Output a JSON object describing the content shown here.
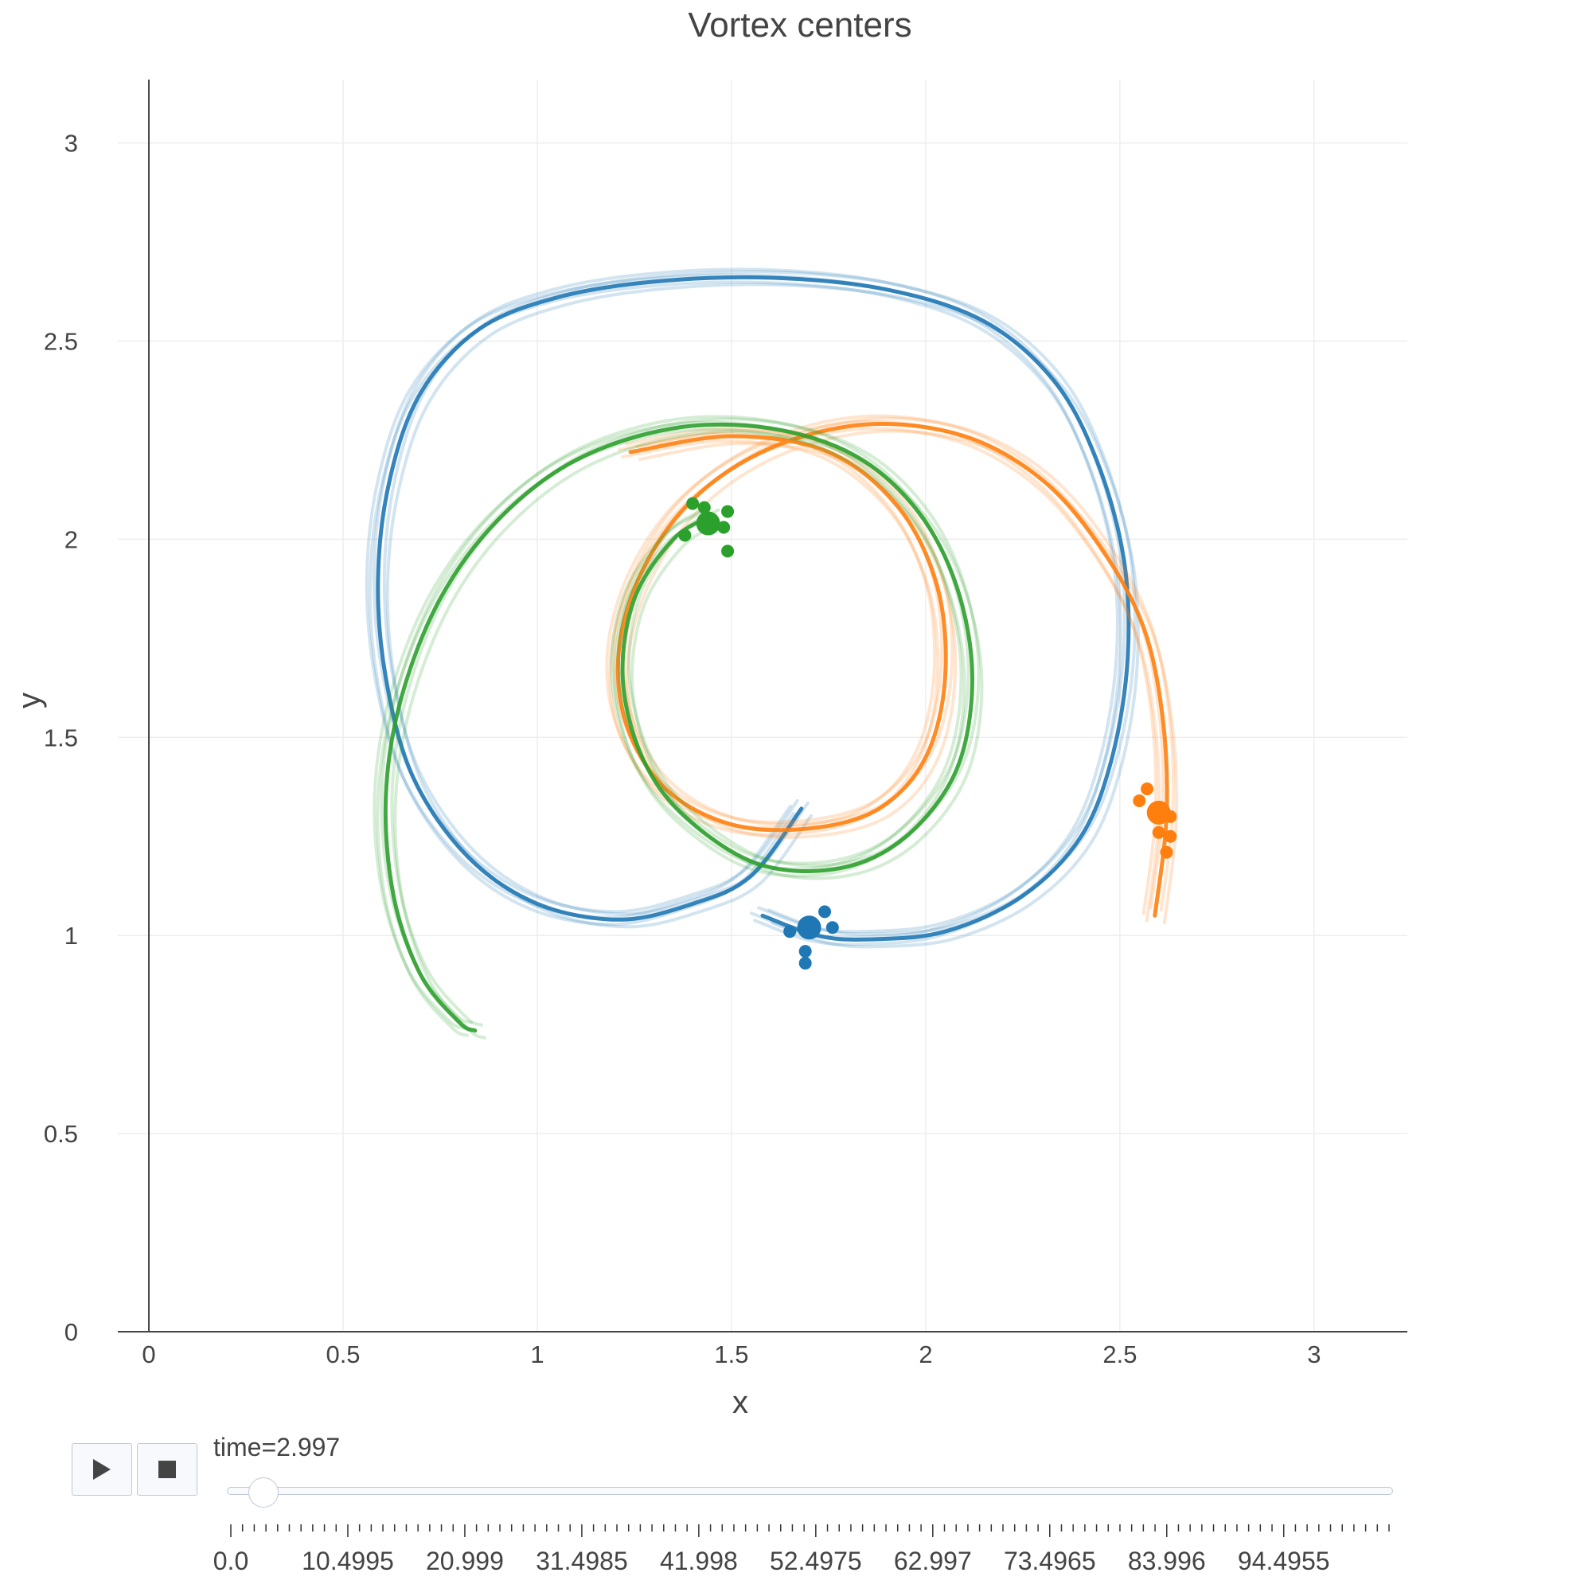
{
  "chart_data": {
    "type": "scatter",
    "title": "Vortex centers",
    "xlabel": "x",
    "ylabel": "y",
    "xlim": [
      -0.08,
      3.24
    ],
    "ylim": [
      0,
      3.16
    ],
    "xticks": [
      "0",
      "0.5",
      "1",
      "1.5",
      "2",
      "2.5",
      "3"
    ],
    "yticks": [
      "0",
      "0.5",
      "1",
      "1.5",
      "2",
      "2.5",
      "3"
    ],
    "grid": true,
    "legend": "none",
    "series": [
      {
        "color": "#1f77b4",
        "trail": [
          [
            1.68,
            1.32
          ],
          [
            1.55,
            1.15
          ],
          [
            1.4,
            1.08
          ],
          [
            1.21,
            1.04
          ],
          [
            1.0,
            1.08
          ],
          [
            0.82,
            1.2
          ],
          [
            0.68,
            1.4
          ],
          [
            0.61,
            1.65
          ],
          [
            0.59,
            1.9
          ],
          [
            0.62,
            2.15
          ],
          [
            0.7,
            2.37
          ],
          [
            0.85,
            2.53
          ],
          [
            1.05,
            2.61
          ],
          [
            1.3,
            2.65
          ],
          [
            1.6,
            2.66
          ],
          [
            1.9,
            2.63
          ],
          [
            2.15,
            2.55
          ],
          [
            2.33,
            2.4
          ],
          [
            2.44,
            2.2
          ],
          [
            2.51,
            1.95
          ],
          [
            2.52,
            1.7
          ],
          [
            2.48,
            1.45
          ],
          [
            2.4,
            1.25
          ],
          [
            2.25,
            1.1
          ],
          [
            2.05,
            1.01
          ],
          [
            1.85,
            0.99
          ],
          [
            1.72,
            1.0
          ],
          [
            1.58,
            1.05
          ]
        ],
        "current": [
          1.7,
          1.02
        ],
        "points": [
          [
            1.65,
            1.01
          ],
          [
            1.74,
            1.06
          ],
          [
            1.76,
            1.02
          ],
          [
            1.69,
            0.96
          ],
          [
            1.69,
            0.93
          ]
        ]
      },
      {
        "color": "#ff7f0e",
        "trail": [
          [
            1.24,
            2.22
          ],
          [
            1.5,
            2.26
          ],
          [
            1.75,
            2.22
          ],
          [
            1.93,
            2.08
          ],
          [
            2.03,
            1.88
          ],
          [
            2.05,
            1.65
          ],
          [
            2.0,
            1.45
          ],
          [
            1.88,
            1.32
          ],
          [
            1.7,
            1.27
          ],
          [
            1.5,
            1.28
          ],
          [
            1.33,
            1.37
          ],
          [
            1.23,
            1.53
          ],
          [
            1.21,
            1.72
          ],
          [
            1.27,
            1.92
          ],
          [
            1.4,
            2.1
          ],
          [
            1.6,
            2.23
          ],
          [
            1.85,
            2.29
          ],
          [
            2.1,
            2.26
          ],
          [
            2.3,
            2.15
          ],
          [
            2.45,
            1.98
          ],
          [
            2.56,
            1.78
          ],
          [
            2.61,
            1.55
          ],
          [
            2.62,
            1.3
          ],
          [
            2.59,
            1.05
          ]
        ],
        "current": [
          2.6,
          1.31
        ],
        "points": [
          [
            2.55,
            1.34
          ],
          [
            2.57,
            1.37
          ],
          [
            2.63,
            1.3
          ],
          [
            2.6,
            1.26
          ],
          [
            2.63,
            1.25
          ],
          [
            2.62,
            1.21
          ]
        ]
      },
      {
        "color": "#2ca02c",
        "trail": [
          [
            1.45,
            2.06
          ],
          [
            1.35,
            2.0
          ],
          [
            1.25,
            1.85
          ],
          [
            1.22,
            1.65
          ],
          [
            1.27,
            1.45
          ],
          [
            1.38,
            1.3
          ],
          [
            1.57,
            1.18
          ],
          [
            1.78,
            1.17
          ],
          [
            1.95,
            1.25
          ],
          [
            2.08,
            1.42
          ],
          [
            2.12,
            1.65
          ],
          [
            2.08,
            1.88
          ],
          [
            1.98,
            2.07
          ],
          [
            1.82,
            2.21
          ],
          [
            1.6,
            2.28
          ],
          [
            1.35,
            2.28
          ],
          [
            1.1,
            2.2
          ],
          [
            0.9,
            2.05
          ],
          [
            0.75,
            1.85
          ],
          [
            0.65,
            1.6
          ],
          [
            0.61,
            1.35
          ],
          [
            0.63,
            1.1
          ],
          [
            0.7,
            0.9
          ],
          [
            0.8,
            0.78
          ],
          [
            0.84,
            0.76
          ]
        ],
        "current": [
          1.44,
          2.04
        ],
        "points": [
          [
            1.38,
            2.01
          ],
          [
            1.4,
            2.09
          ],
          [
            1.43,
            2.08
          ],
          [
            1.49,
            2.07
          ],
          [
            1.48,
            2.03
          ],
          [
            1.49,
            1.97
          ]
        ]
      }
    ]
  },
  "controls": {
    "play_icon": "play-icon",
    "stop_icon": "stop-icon",
    "slider_prefix": "time=",
    "slider_value": "2.997",
    "slider_fraction": 0.0285,
    "slider_ticks": [
      "0.0",
      "10.4995",
      "20.999",
      "31.4985",
      "41.998",
      "52.4975",
      "62.997",
      "73.4965",
      "83.996",
      "94.4955"
    ],
    "slider_tick_count": 100
  }
}
